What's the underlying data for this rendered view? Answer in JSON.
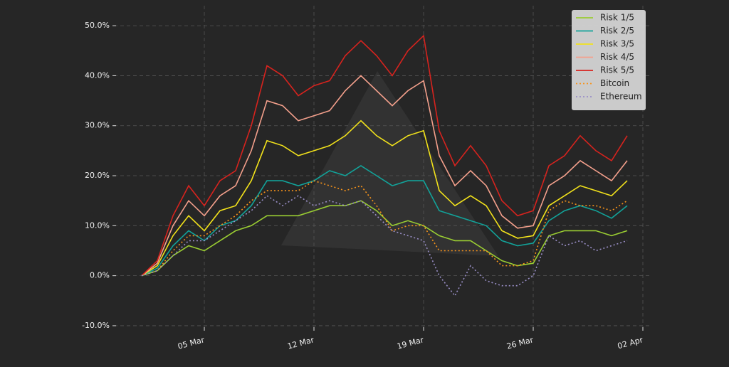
{
  "chart_data": {
    "type": "line",
    "x": [
      "01 Mar",
      "02 Mar",
      "03 Mar",
      "04 Mar",
      "05 Mar",
      "06 Mar",
      "07 Mar",
      "08 Mar",
      "09 Mar",
      "10 Mar",
      "11 Mar",
      "12 Mar",
      "13 Mar",
      "14 Mar",
      "15 Mar",
      "16 Mar",
      "17 Mar",
      "18 Mar",
      "19 Mar",
      "20 Mar",
      "21 Mar",
      "22 Mar",
      "23 Mar",
      "24 Mar",
      "25 Mar",
      "26 Mar",
      "27 Mar",
      "28 Mar",
      "29 Mar",
      "30 Mar",
      "31 Mar",
      "01 Apr"
    ],
    "xlim": [
      "01 Mar",
      "02 Apr"
    ],
    "xticks": [
      "05 Mar",
      "12 Mar",
      "19 Mar",
      "26 Mar",
      "02 Apr"
    ],
    "ylim": [
      -12,
      54
    ],
    "yticks": [
      {
        "value": -10,
        "label": "-10.0%"
      },
      {
        "value": 0,
        "label": "0.0%"
      },
      {
        "value": 10,
        "label": "10.0%"
      },
      {
        "value": 20,
        "label": "20.0%"
      },
      {
        "value": 30,
        "label": "30.0%"
      },
      {
        "value": 40,
        "label": "40.0%"
      },
      {
        "value": 50,
        "label": "50.0%"
      }
    ],
    "grid": true,
    "legend": "upper right",
    "series": [
      {
        "name": "Risk 1/5",
        "color": "#9acd32",
        "style": "solid",
        "values": [
          0,
          1,
          4,
          6,
          5,
          7,
          9,
          10,
          12,
          12,
          12,
          13,
          14,
          14,
          15,
          13,
          10,
          11,
          10,
          8,
          7,
          7,
          5,
          3,
          2,
          2.5,
          8,
          9,
          9,
          9,
          8,
          9
        ]
      },
      {
        "name": "Risk 2/5",
        "color": "#12a39a",
        "style": "solid",
        "values": [
          0,
          1.5,
          6,
          9,
          7,
          10,
          11,
          14,
          19,
          19,
          18,
          19,
          21,
          20,
          22,
          20,
          18,
          19,
          19,
          13,
          12,
          11,
          10,
          7,
          6,
          6.5,
          11,
          13,
          14,
          13,
          11.5,
          14
        ]
      },
      {
        "name": "Risk 3/5",
        "color": "#f2e21b",
        "style": "solid",
        "values": [
          0,
          2,
          8,
          12,
          9,
          13,
          14,
          19,
          27,
          26,
          24,
          25,
          26,
          28,
          31,
          28,
          26,
          28,
          29,
          17,
          14,
          16,
          14,
          9,
          7.5,
          8,
          14,
          16,
          18,
          17,
          16,
          19
        ]
      },
      {
        "name": "Risk 4/5",
        "color": "#f4a08c",
        "style": "solid",
        "values": [
          0,
          2.5,
          10,
          15,
          12,
          16,
          18,
          25,
          35,
          34,
          31,
          32,
          33,
          37,
          40,
          37,
          34,
          37,
          39,
          24,
          18,
          21,
          18,
          12,
          9.5,
          10,
          18,
          20,
          23,
          21,
          19,
          23
        ]
      },
      {
        "name": "Risk 5/5",
        "color": "#d7231e",
        "style": "solid",
        "values": [
          0,
          3,
          12,
          18,
          14,
          19,
          21,
          30,
          42,
          40,
          36,
          38,
          39,
          44,
          47,
          44,
          40,
          45,
          48,
          29,
          22,
          26,
          22,
          15,
          12,
          13,
          22,
          24,
          28,
          25,
          23,
          28
        ]
      },
      {
        "name": "Bitcoin",
        "color": "#f7931a",
        "style": "dotted",
        "values": [
          0,
          1,
          5,
          8,
          8,
          10,
          12,
          15,
          17,
          17,
          17,
          19,
          18,
          17,
          18,
          14,
          9,
          10,
          10,
          5,
          5,
          5,
          5,
          2,
          2,
          3,
          13,
          15,
          14,
          14,
          13,
          15
        ]
      },
      {
        "name": "Ethereum",
        "color": "#9a8fc8",
        "style": "dotted",
        "values": [
          0,
          1,
          4,
          7,
          7,
          9,
          11,
          13,
          16,
          14,
          16,
          14,
          15,
          14,
          15,
          12,
          9,
          8,
          7,
          0,
          -4,
          2,
          -1,
          -2,
          -2,
          0,
          8,
          6,
          7,
          5,
          6,
          7
        ]
      }
    ]
  }
}
